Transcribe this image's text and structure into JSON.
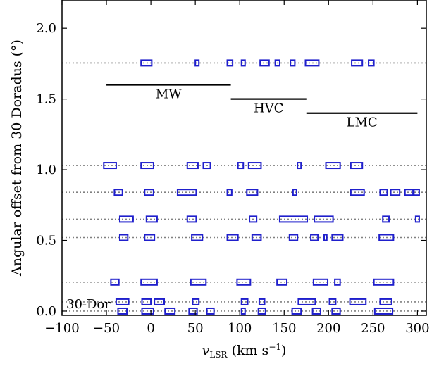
{
  "chart_data": {
    "type": "scatter",
    "title": "",
    "xlabel_main": "v",
    "xlabel_sub": "LSR",
    "xlabel_units": " (km s",
    "xlabel_exp": "−1",
    "xlabel_close": ")",
    "ylabel": "Angular offset from 30 Doradus (°)",
    "xlim": [
      -100,
      310
    ],
    "ylim": [
      -0.03,
      2.2
    ],
    "x_ticks": [
      -100,
      -50,
      0,
      50,
      100,
      150,
      200,
      250,
      300
    ],
    "x_tick_labels": [
      "−100",
      "−50",
      "0",
      "50",
      "100",
      "150",
      "200",
      "250",
      "300"
    ],
    "y_ticks": [
      0.0,
      0.5,
      1.0,
      1.5,
      2.0
    ],
    "y_tick_labels": [
      "0.0",
      "0.5",
      "1.0",
      "1.5",
      "2.0"
    ],
    "grid": false,
    "colors": {
      "boxes": "#1f1fcc",
      "lines": "#000000",
      "rows": "#808080"
    },
    "velocity_ranges": [
      {
        "label": "MW",
        "x": [
          -50,
          90
        ],
        "y": 1.6
      },
      {
        "label": "HVC",
        "x": [
          90,
          175
        ],
        "y": 1.5
      },
      {
        "label": "LMC",
        "x": [
          175,
          300
        ],
        "y": 1.4
      }
    ],
    "row_label": {
      "text": "30-Dor",
      "y": 0.05
    },
    "rows": [
      {
        "y": 0.0,
        "boxes": [
          [
            -37,
            -27
          ],
          [
            -10,
            3
          ],
          [
            16,
            27
          ],
          [
            43,
            52
          ],
          [
            63,
            71
          ],
          [
            102,
            106
          ],
          [
            121,
            129
          ],
          [
            159,
            169
          ],
          [
            182,
            191
          ],
          [
            204,
            213
          ],
          [
            252,
            272
          ]
        ]
      },
      {
        "y": 0.065,
        "boxes": [
          [
            -39,
            -25
          ],
          [
            -10,
            0
          ],
          [
            4,
            15
          ],
          [
            47,
            54
          ],
          [
            102,
            109
          ],
          [
            122,
            128
          ],
          [
            166,
            185
          ],
          [
            201,
            208
          ],
          [
            224,
            242
          ],
          [
            258,
            271
          ]
        ]
      },
      {
        "y": 0.205,
        "boxes": [
          [
            -45,
            -36
          ],
          [
            -11,
            7
          ],
          [
            45,
            62
          ],
          [
            97,
            112
          ],
          [
            142,
            153
          ],
          [
            183,
            199
          ],
          [
            207,
            213
          ],
          [
            251,
            273
          ]
        ]
      },
      {
        "y": 0.52,
        "boxes": [
          [
            -35,
            -26
          ],
          [
            -7,
            4
          ],
          [
            46,
            58
          ],
          [
            86,
            98
          ],
          [
            114,
            124
          ],
          [
            156,
            165
          ],
          [
            180,
            188
          ],
          [
            195,
            198
          ],
          [
            204,
            216
          ],
          [
            257,
            273
          ]
        ]
      },
      {
        "y": 0.65,
        "boxes": [
          [
            -35,
            -20
          ],
          [
            -5,
            7
          ],
          [
            41,
            51
          ],
          [
            111,
            119
          ],
          [
            145,
            176
          ],
          [
            184,
            205
          ],
          [
            261,
            268
          ],
          [
            298,
            302
          ]
        ]
      },
      {
        "y": 0.84,
        "boxes": [
          [
            -41,
            -32
          ],
          [
            -7,
            3
          ],
          [
            30,
            51
          ],
          [
            86,
            91
          ],
          [
            108,
            120
          ],
          [
            160,
            164
          ],
          [
            225,
            240
          ],
          [
            258,
            266
          ],
          [
            270,
            280
          ],
          [
            286,
            295
          ],
          [
            296,
            302
          ]
        ]
      },
      {
        "y": 1.03,
        "boxes": [
          [
            -53,
            -39
          ],
          [
            -11,
            3
          ],
          [
            41,
            53
          ],
          [
            59,
            67
          ],
          [
            98,
            104
          ],
          [
            110,
            124
          ],
          [
            165,
            169
          ],
          [
            197,
            213
          ],
          [
            225,
            238
          ]
        ]
      },
      {
        "y": 1.755,
        "boxes": [
          [
            -11,
            1
          ],
          [
            50,
            54
          ],
          [
            86,
            92
          ],
          [
            102,
            106
          ],
          [
            123,
            133
          ],
          [
            140,
            145
          ],
          [
            157,
            162
          ],
          [
            174,
            189
          ],
          [
            226,
            238
          ],
          [
            245,
            251
          ]
        ]
      }
    ]
  }
}
